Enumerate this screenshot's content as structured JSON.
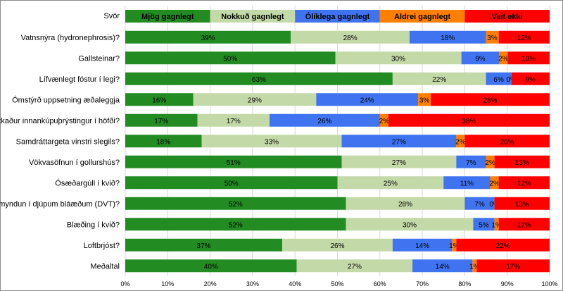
{
  "chart_data": {
    "type": "bar",
    "orientation": "horizontal",
    "stacked": "percent",
    "legend_title": "Svör",
    "legend_position": "top",
    "categories": [
      "Vatnsnýra (hydronephrosis)?",
      "Gallsteinar?",
      "Lífvænlegt fóstur í legi?",
      "Ómstýrð uppsetning æðaleggja",
      "Hækkaður innankúpuþrýstingur í höfði?",
      "Samdráttargeta vinstri slegils?",
      "Vökvasöfnun í gollurshús?",
      "Ósæðargúll í kvið?",
      "Segamyndun í djúpum bláæðum (DVT)?",
      "Blæðing í kvið?",
      "Loftbrjóst?",
      "Meðaltal"
    ],
    "series": [
      {
        "name": "Mjög gagnlegt",
        "color": "#228b22",
        "values": [
          39,
          50,
          63,
          16,
          17,
          18,
          51,
          50,
          52,
          52,
          37,
          40
        ],
        "labels": [
          "39%",
          "50%",
          "63%",
          "16%",
          "17%",
          "18%",
          "51%",
          "50%",
          "52%",
          "52%",
          "37%",
          "40%"
        ]
      },
      {
        "name": "Nokkuð gagnlegt",
        "color": "#c4d9a8",
        "values": [
          28,
          30,
          22,
          29,
          17,
          33,
          27,
          25,
          28,
          30,
          26,
          27
        ],
        "labels": [
          "28%",
          "30%",
          "22%",
          "29%",
          "17%",
          "33%",
          "27%",
          "25%",
          "28%",
          "30%",
          "26%",
          "27%"
        ]
      },
      {
        "name": "Ólíklega gagnlegt",
        "color": "#3f73f0",
        "values": [
          18,
          9,
          6,
          24,
          26,
          27,
          7,
          11,
          7,
          5,
          14,
          14
        ],
        "labels": [
          "18%",
          "9%",
          "6%",
          "24%",
          "26%",
          "27%",
          "7%",
          "11%",
          "7%",
          "5%",
          "14%",
          "14%"
        ]
      },
      {
        "name": "Aldrei gagnlegt",
        "color": "#ff7f00",
        "values": [
          3,
          2,
          0,
          3,
          2,
          2,
          2,
          2,
          0,
          1,
          1,
          1
        ],
        "labels": [
          "3%",
          "2%",
          "0%",
          "3%",
          "2%",
          "2%",
          "2%",
          "2%",
          "0%",
          "1%",
          "1%",
          "1%"
        ]
      },
      {
        "name": "Veit ekki",
        "color": "#ff0000",
        "values": [
          12,
          10,
          9,
          28,
          38,
          20,
          13,
          12,
          13,
          12,
          22,
          17
        ],
        "labels": [
          "12%",
          "10%",
          "9%",
          "28%",
          "38%",
          "20%",
          "13%",
          "12%",
          "13%",
          "12%",
          "22%",
          "17%"
        ]
      }
    ],
    "xlim": [
      0,
      100
    ],
    "x_ticks": [
      "0%",
      "10%",
      "20%",
      "30%",
      "40%",
      "50%",
      "60%",
      "70%",
      "80%",
      "90%",
      "100%"
    ],
    "grid": true,
    "title": "",
    "xlabel": "",
    "ylabel": ""
  }
}
